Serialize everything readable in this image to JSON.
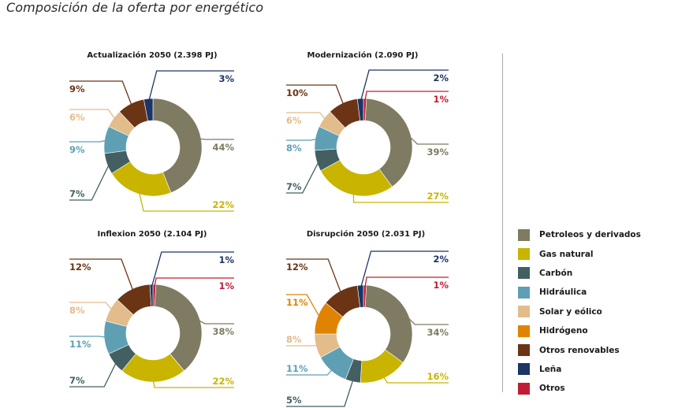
{
  "page": {
    "title": "Composición de la oferta por energético"
  },
  "colors": {
    "Petroleos y derivados": "#7f7b62",
    "Gas natural": "#c9b400",
    "Carbón": "#445f62",
    "Hidráulica": "#5e9fb4",
    "Solar y eólico": "#e2bc8a",
    "Hidrógeno": "#e08305",
    "Otros renovables": "#6b3515",
    "Leña": "#1c3565",
    "Otros": "#c01d35"
  },
  "legend": [
    {
      "label": "Petroleos y derivados"
    },
    {
      "label": "Gas natural"
    },
    {
      "label": "Carbón"
    },
    {
      "label": "Hidráulica"
    },
    {
      "label": "Solar y eólico"
    },
    {
      "label": "Hidrógeno"
    },
    {
      "label": "Otros renovables"
    },
    {
      "label": "Leña"
    },
    {
      "label": "Otros"
    }
  ],
  "chart_data": [
    {
      "type": "pie",
      "subtype": "donut",
      "title": "Actualización 2050 (2.398 PJ)",
      "categories": [
        "Petroleos y derivados",
        "Gas natural",
        "Carbón",
        "Hidráulica",
        "Solar y eólico",
        "Otros renovables",
        "Leña"
      ],
      "values": [
        44,
        22,
        7,
        9,
        6,
        9,
        3
      ],
      "labels": [
        "44%",
        "22%",
        "7%",
        "9%",
        "6%",
        "9%",
        "3%"
      ]
    },
    {
      "type": "pie",
      "subtype": "donut",
      "title": "Modernización (2.090 PJ)",
      "categories": [
        "Petroleos y derivados",
        "Gas natural",
        "Carbón",
        "Hidráulica",
        "Solar y eólico",
        "Otros renovables",
        "Leña",
        "Otros"
      ],
      "values": [
        39,
        27,
        7,
        8,
        6,
        10,
        2,
        1
      ],
      "labels": [
        "39%",
        "27%",
        "7%",
        "8%",
        "6%",
        "10%",
        "2%",
        "1%"
      ]
    },
    {
      "type": "pie",
      "subtype": "donut",
      "title": "Inflexion 2050 (2.104 PJ)",
      "categories": [
        "Petroleos y derivados",
        "Gas natural",
        "Carbón",
        "Hidráulica",
        "Solar y eólico",
        "Otros renovables",
        "Leña",
        "Otros"
      ],
      "values": [
        38,
        22,
        7,
        11,
        8,
        12,
        1,
        1
      ],
      "labels": [
        "38%",
        "22%",
        "7%",
        "11%",
        "8%",
        "12%",
        "1%",
        "1%"
      ]
    },
    {
      "type": "pie",
      "subtype": "donut",
      "title": "Disrupción 2050 (2.031 PJ)",
      "categories": [
        "Petroleos y derivados",
        "Gas natural",
        "Carbón",
        "Hidráulica",
        "Solar y eólico",
        "Hidrógeno",
        "Otros renovables",
        "Leña",
        "Otros"
      ],
      "values": [
        34,
        16,
        5,
        11,
        8,
        11,
        12,
        2,
        1
      ],
      "labels": [
        "34%",
        "16%",
        "5%",
        "11%",
        "8%",
        "11%",
        "12%",
        "2%",
        "1%"
      ]
    }
  ]
}
